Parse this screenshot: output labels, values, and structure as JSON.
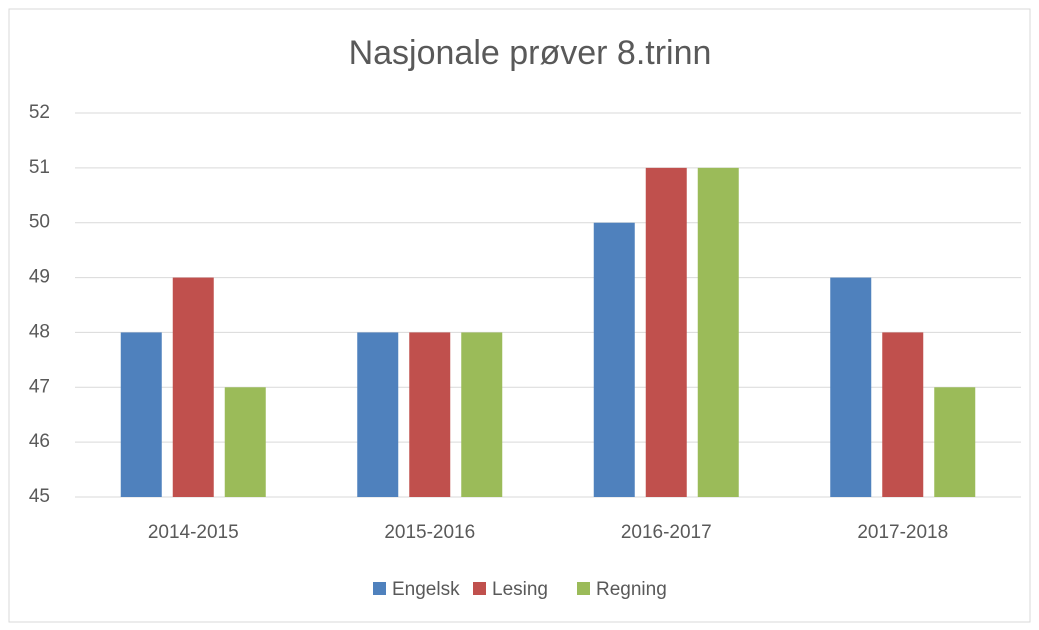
{
  "chart_data": {
    "type": "bar",
    "title": "Nasjonale prøver 8.trinn",
    "categories": [
      "2014-2015",
      "2015-2016",
      "2016-2017",
      "2017-2018"
    ],
    "series": [
      {
        "name": "Engelsk",
        "color": "#4f81bd",
        "values": [
          48,
          48,
          50,
          49
        ]
      },
      {
        "name": "Lesing",
        "color": "#c0504d",
        "values": [
          49,
          48,
          51,
          48
        ]
      },
      {
        "name": "Regning",
        "color": "#9bbb59",
        "values": [
          47,
          48,
          51,
          47
        ]
      }
    ],
    "ylim": [
      45,
      52
    ],
    "yticks": [
      45,
      46,
      47,
      48,
      49,
      50,
      51,
      52
    ],
    "grid": true,
    "legend": "bottom"
  }
}
